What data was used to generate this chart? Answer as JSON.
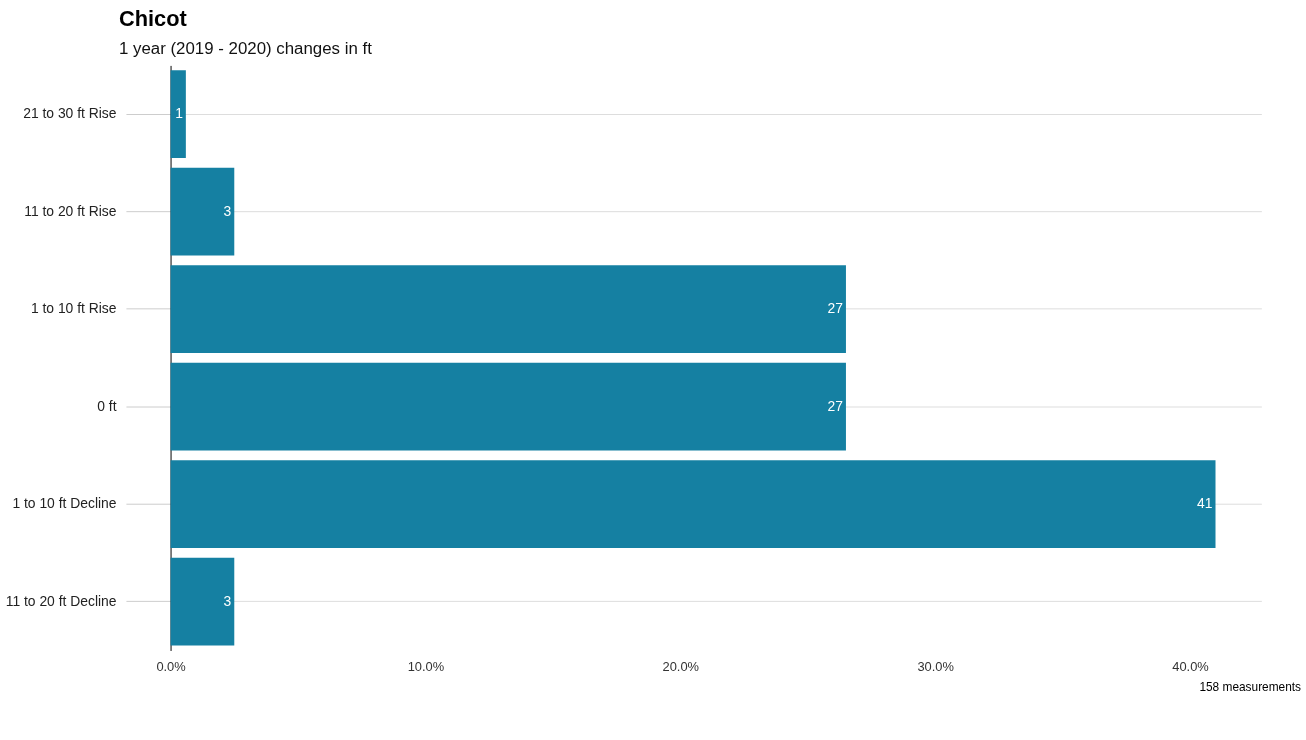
{
  "chart_data": {
    "type": "bar",
    "orientation": "horizontal",
    "title": "Chicot",
    "subtitle": "1 year (2019 - 2020) changes in ft",
    "categories": [
      "21 to 30 ft Rise",
      "11 to 20 ft Rise",
      "1 to 10 ft Rise",
      "0 ft",
      "1 to 10 ft Decline",
      "11 to 20 ft Decline"
    ],
    "values": [
      0.6,
      2.5,
      26.5,
      26.5,
      41.0,
      2.5
    ],
    "value_labels": [
      "1",
      "3",
      "27",
      "27",
      "41",
      "3"
    ],
    "color": "#1580a2",
    "xlim": [
      0,
      42.8
    ],
    "xticks": [
      {
        "value": 0,
        "label": "0.0%"
      },
      {
        "value": 10,
        "label": "10.0%"
      },
      {
        "value": 20,
        "label": "20.0%"
      },
      {
        "value": 30,
        "label": "30.0%"
      },
      {
        "value": 40,
        "label": "40.0%"
      }
    ],
    "grid": "y",
    "annotations": [
      "158 measurements"
    ]
  }
}
